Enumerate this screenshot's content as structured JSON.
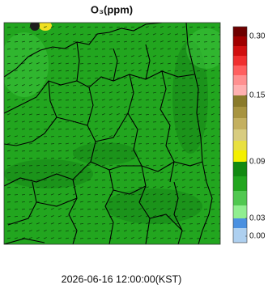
{
  "title": "O₃(ppm)",
  "colorbar": {
    "ticks": [
      {
        "value": 0.3,
        "label": "0.30"
      },
      {
        "value": 0.15,
        "label": "0.15"
      },
      {
        "value": 0.09,
        "label": "0.09"
      },
      {
        "value": 0.03,
        "label": "0.03"
      },
      {
        "value": 0,
        "label": "0.00"
      }
    ]
  },
  "timestamp": "2026-06-16 12:00:00(KST)"
}
